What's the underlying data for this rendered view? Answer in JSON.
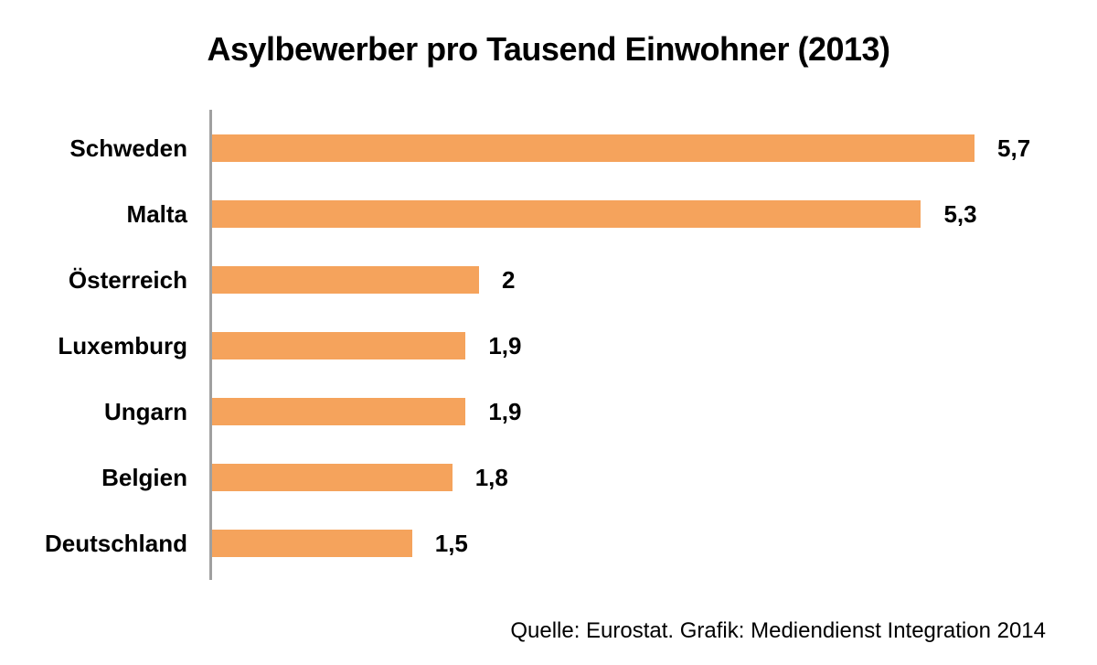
{
  "title": "Asylbewerber pro Tausend Einwohner (2013)",
  "source": "Quelle: Eurostat. Grafik: Mediendienst Integration 2014",
  "colors": {
    "bar": "#F5A35C",
    "axis": "#A0A0A0",
    "text": "#000000",
    "background": "#FFFFFF"
  },
  "chart_data": {
    "type": "bar",
    "orientation": "horizontal",
    "title": "Asylbewerber pro Tausend Einwohner (2013)",
    "categories": [
      "Schweden",
      "Malta",
      "Österreich",
      "Luxemburg",
      "Ungarn",
      "Belgien",
      "Deutschland"
    ],
    "values": [
      5.7,
      5.3,
      2,
      1.9,
      1.9,
      1.8,
      1.5
    ],
    "value_labels": [
      "5,7",
      "5,3",
      "2",
      "1,9",
      "1,9",
      "1,8",
      "1,5"
    ],
    "xlabel": "",
    "ylabel": "",
    "xlim": [
      0,
      6.4
    ],
    "grid": false,
    "legend": false,
    "source": "Quelle: Eurostat. Grafik: Mediendienst Integration 2014"
  }
}
